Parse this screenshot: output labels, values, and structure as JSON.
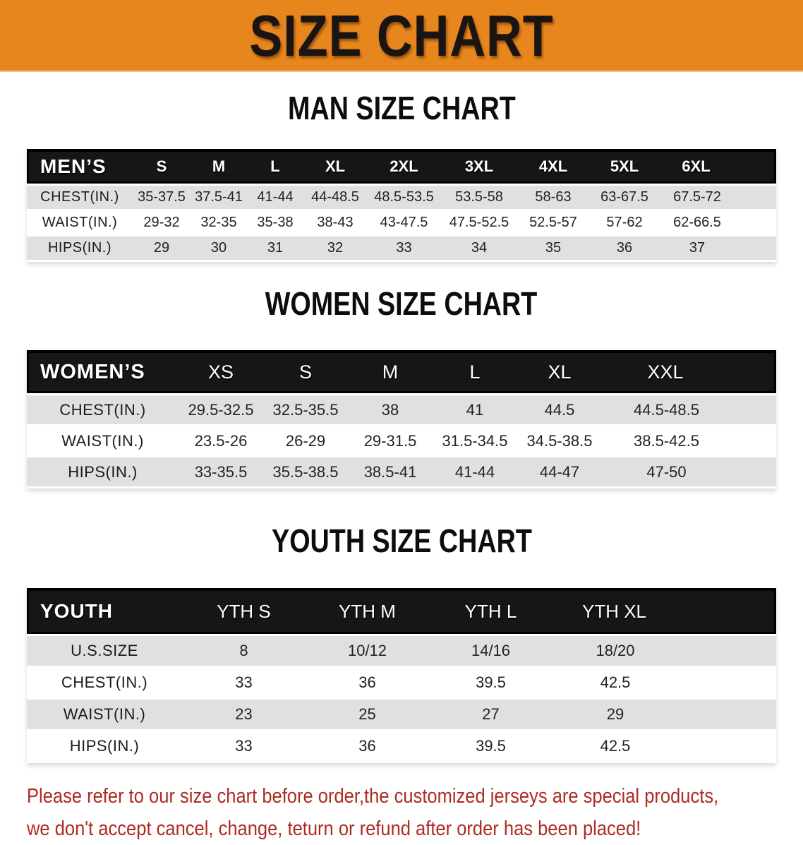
{
  "banner": {
    "title": "SIZE CHART"
  },
  "sections": {
    "men": {
      "heading": "MAN SIZE CHART",
      "table": {
        "label": "MEN’S",
        "columns": [
          "S",
          "M",
          "L",
          "XL",
          "2XL",
          "3XL",
          "4XL",
          "5XL",
          "6XL"
        ],
        "rows": [
          {
            "label": "CHEST(IN.)",
            "values": [
              "35-37.5",
              "37.5-41",
              "41-44",
              "44-48.5",
              "48.5-53.5",
              "53.5-58",
              "58-63",
              "63-67.5",
              "67.5-72"
            ]
          },
          {
            "label": "WAIST(IN.)",
            "values": [
              "29-32",
              "32-35",
              "35-38",
              "38-43",
              "43-47.5",
              "47.5-52.5",
              "52.5-57",
              "57-62",
              "62-66.5"
            ]
          },
          {
            "label": "HIPS(IN.)",
            "values": [
              "29",
              "30",
              "31",
              "32",
              "33",
              "34",
              "35",
              "36",
              "37"
            ]
          }
        ]
      }
    },
    "women": {
      "heading": "WOMEN SIZE CHART",
      "table": {
        "label": "WOMEN’S",
        "columns": [
          "XS",
          "S",
          "M",
          "L",
          "XL",
          "XXL"
        ],
        "rows": [
          {
            "label": "CHEST(IN.)",
            "values": [
              "29.5-32.5",
              "32.5-35.5",
              "38",
              "41",
              "44.5",
              "44.5-48.5"
            ]
          },
          {
            "label": "WAIST(IN.)",
            "values": [
              "23.5-26",
              "26-29",
              "29-31.5",
              "31.5-34.5",
              "34.5-38.5",
              "38.5-42.5"
            ]
          },
          {
            "label": "HIPS(IN.)",
            "values": [
              "33-35.5",
              "35.5-38.5",
              "38.5-41",
              "41-44",
              "44-47",
              "47-50"
            ]
          }
        ]
      }
    },
    "youth": {
      "heading": "YOUTH SIZE CHART",
      "table": {
        "label": "YOUTH",
        "columns": [
          "YTH S",
          "YTH M",
          "YTH L",
          "YTH XL"
        ],
        "rows": [
          {
            "label": "U.S.SIZE",
            "values": [
              "8",
              "10/12",
              "14/16",
              "18/20"
            ]
          },
          {
            "label": "CHEST(IN.)",
            "values": [
              "33",
              "36",
              "39.5",
              "42.5"
            ]
          },
          {
            "label": "WAIST(IN.)",
            "values": [
              "23",
              "25",
              "27",
              "29"
            ]
          },
          {
            "label": "HIPS(IN.)",
            "values": [
              "33",
              "36",
              "39.5",
              "42.5"
            ]
          }
        ]
      }
    }
  },
  "disclaimer": {
    "line1": "Please refer to our size chart before order,the customized jerseys are special products,",
    "line2": "we don't accept cancel, change, teturn or refund after order has been placed!"
  },
  "colors": {
    "banner_orange": "#E8861E",
    "header_black": "#181515",
    "row_gray": "#E0E0DE",
    "disclaimer_red": "#AD2B22",
    "title_text": "#1A1512"
  }
}
